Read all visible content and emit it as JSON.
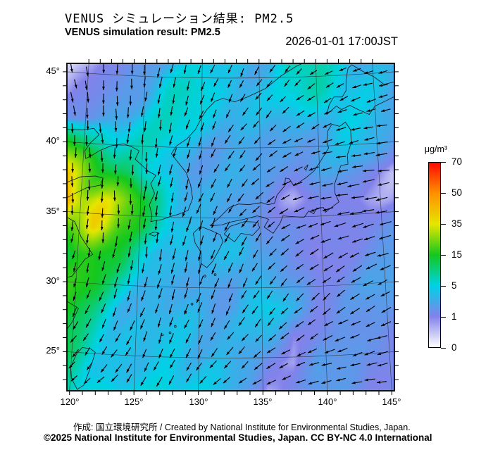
{
  "header": {
    "title_ja": "VENUS シミュレーション結果: PM2.5",
    "title_en": "VENUS simulation result: PM2.5",
    "timestamp": "2026-01-01 17:00JST"
  },
  "colorbar": {
    "unit": "μg/m³",
    "tick_labels": [
      "70",
      "50",
      "35",
      "15",
      "5",
      "1",
      "0"
    ]
  },
  "axes": {
    "lon_labels": [
      "120°",
      "125°",
      "130°",
      "135°",
      "140°",
      "145°"
    ],
    "lat_labels": [
      "45°",
      "40°",
      "35°",
      "30°",
      "25°"
    ]
  },
  "footer": {
    "credit": "作成: 国立環境研究所 / Created by National Institute for Environmental Studies, Japan.",
    "license": "©2025 National Institute for Environmental Studies, Japan. CC BY-NC 4.0 International"
  },
  "chart_data": {
    "type": "heatmap",
    "title": "VENUS simulation result: PM2.5",
    "subtitle": "VENUS シミュレーション結果: PM2.5",
    "timestamp": "2026-01-01 17:00JST",
    "unit": "μg/m³",
    "overlay": "wind-vectors",
    "legend_position": "right",
    "lon_range": [
      119.8,
      145.2
    ],
    "lat_range": [
      22.2,
      45.6
    ],
    "lon_ticks_deg": [
      120,
      125,
      130,
      135,
      140,
      145
    ],
    "lat_ticks_deg": [
      45,
      40,
      35,
      30,
      25
    ],
    "colormap": {
      "values": [
        0,
        1,
        5,
        15,
        35,
        50,
        70
      ],
      "colors": [
        "#ffffff",
        "#8282ea",
        "#00d2e6",
        "#14c81e",
        "#e6e600",
        "#ff9100",
        "#ff0a00"
      ]
    },
    "pm25_grid": {
      "lons": [
        119.8,
        121.8,
        123.7,
        125.7,
        127.6,
        129.6,
        131.5,
        133.5,
        135.4,
        137.4,
        139.3,
        141.3,
        143.2,
        145.2
      ],
      "lats": [
        45.6,
        43.7,
        41.7,
        39.8,
        37.8,
        35.9,
        33.9,
        32.0,
        30.0,
        28.1,
        26.1,
        24.2,
        22.2
      ],
      "values": [
        [
          0.3,
          0.5,
          1.2,
          2.2,
          3,
          3.5,
          4,
          5,
          4,
          6,
          8,
          6,
          4,
          2.5
        ],
        [
          0.6,
          1,
          2,
          3.5,
          6,
          6,
          5,
          5,
          4,
          5,
          7,
          5,
          4,
          2.5
        ],
        [
          1.5,
          2,
          3.5,
          5,
          6,
          5,
          4,
          3.5,
          3,
          3.5,
          4.5,
          5,
          4,
          3
        ],
        [
          18,
          9,
          6,
          6,
          5,
          4,
          3,
          2.5,
          2.5,
          3,
          3,
          3.5,
          3,
          2
        ],
        [
          45,
          26,
          12,
          6,
          4.5,
          3.5,
          2.5,
          2.5,
          2,
          2.2,
          2.5,
          2,
          1.2,
          0.8
        ],
        [
          56,
          40,
          22,
          12,
          6,
          4,
          2.5,
          2,
          2,
          0.9,
          1.2,
          0.9,
          0.8,
          1
        ],
        [
          30,
          36,
          18,
          12,
          8,
          4,
          2.5,
          2.5,
          2,
          1.5,
          1,
          0.8,
          1.5,
          2
        ],
        [
          16,
          16,
          13,
          6,
          3.5,
          3,
          3,
          4,
          2.5,
          1.5,
          0.8,
          1.5,
          2,
          2.5
        ],
        [
          15,
          14,
          8,
          4,
          2.8,
          2.5,
          3,
          4.5,
          3,
          2,
          1.2,
          2,
          2.5,
          2
        ],
        [
          14,
          10,
          6,
          3.5,
          2.8,
          3,
          3,
          3.5,
          4,
          2.5,
          1.5,
          2.5,
          2,
          1.5
        ],
        [
          10,
          7,
          5,
          3.2,
          3,
          3.5,
          4,
          4,
          3,
          1,
          2,
          2.5,
          1.5,
          1
        ],
        [
          8,
          6,
          4.5,
          3.5,
          4,
          4.5,
          5,
          3,
          1,
          0.8,
          2.5,
          2,
          1.2,
          1.5
        ],
        [
          9,
          7,
          5,
          4.5,
          5,
          5,
          4,
          2,
          0.8,
          1.5,
          2.5,
          2,
          1.5,
          1.5
        ]
      ]
    },
    "wind_grid": {
      "lons": [
        119.8,
        123.4,
        127.0,
        130.7,
        134.3,
        137.9,
        141.6,
        145.2
      ],
      "lats": [
        45.6,
        42.3,
        38.9,
        35.6,
        32.2,
        28.9,
        25.5,
        22.2
      ],
      "u": [
        [
          0.5,
          0,
          -0.5,
          -1,
          -1,
          -1.5,
          -2,
          -2.5
        ],
        [
          0.5,
          0,
          -0.5,
          -1,
          -1.5,
          -2,
          -2.5,
          -3
        ],
        [
          0,
          0,
          -0.5,
          -1,
          -2,
          -2.5,
          -3,
          -3.5
        ],
        [
          0,
          0,
          -0.5,
          -1.2,
          -2,
          -3,
          -4,
          -4
        ],
        [
          -0.5,
          -0.5,
          -0.5,
          -1,
          -1.5,
          -2.5,
          -3,
          -3.5
        ],
        [
          -1,
          -1,
          -1,
          -1,
          -1.5,
          -2,
          -2.5,
          -3
        ],
        [
          -1.5,
          -1.5,
          -1,
          -1.5,
          -2,
          -2.5,
          -3,
          -3
        ],
        [
          -2,
          -2,
          -1.5,
          -2,
          -2.5,
          -3,
          -3,
          -3
        ]
      ],
      "v": [
        [
          -2.5,
          -3,
          -3,
          -2.5,
          -2,
          -1.5,
          -1,
          -0.5
        ],
        [
          -3,
          -3.2,
          -3,
          -2.5,
          -2,
          -1.5,
          -1,
          -0.5
        ],
        [
          -3,
          -3,
          -3,
          -2.5,
          -2,
          -1,
          -0.5,
          -0.5
        ],
        [
          -3,
          -3,
          -3,
          -2.8,
          -2,
          -1,
          -0.5,
          -1
        ],
        [
          -2.5,
          -3,
          -3.5,
          -3,
          -2.5,
          -1.5,
          -1.5,
          -1
        ],
        [
          -2.5,
          -3,
          -3,
          -3,
          -2.5,
          -2,
          -2,
          -1.5
        ],
        [
          -2,
          -2.5,
          -3,
          -2.5,
          -2,
          -1.5,
          -1,
          -1
        ],
        [
          -1.5,
          -2,
          -2.5,
          -2,
          -1.5,
          -0.5,
          -0.5,
          -0.5
        ]
      ]
    }
  }
}
